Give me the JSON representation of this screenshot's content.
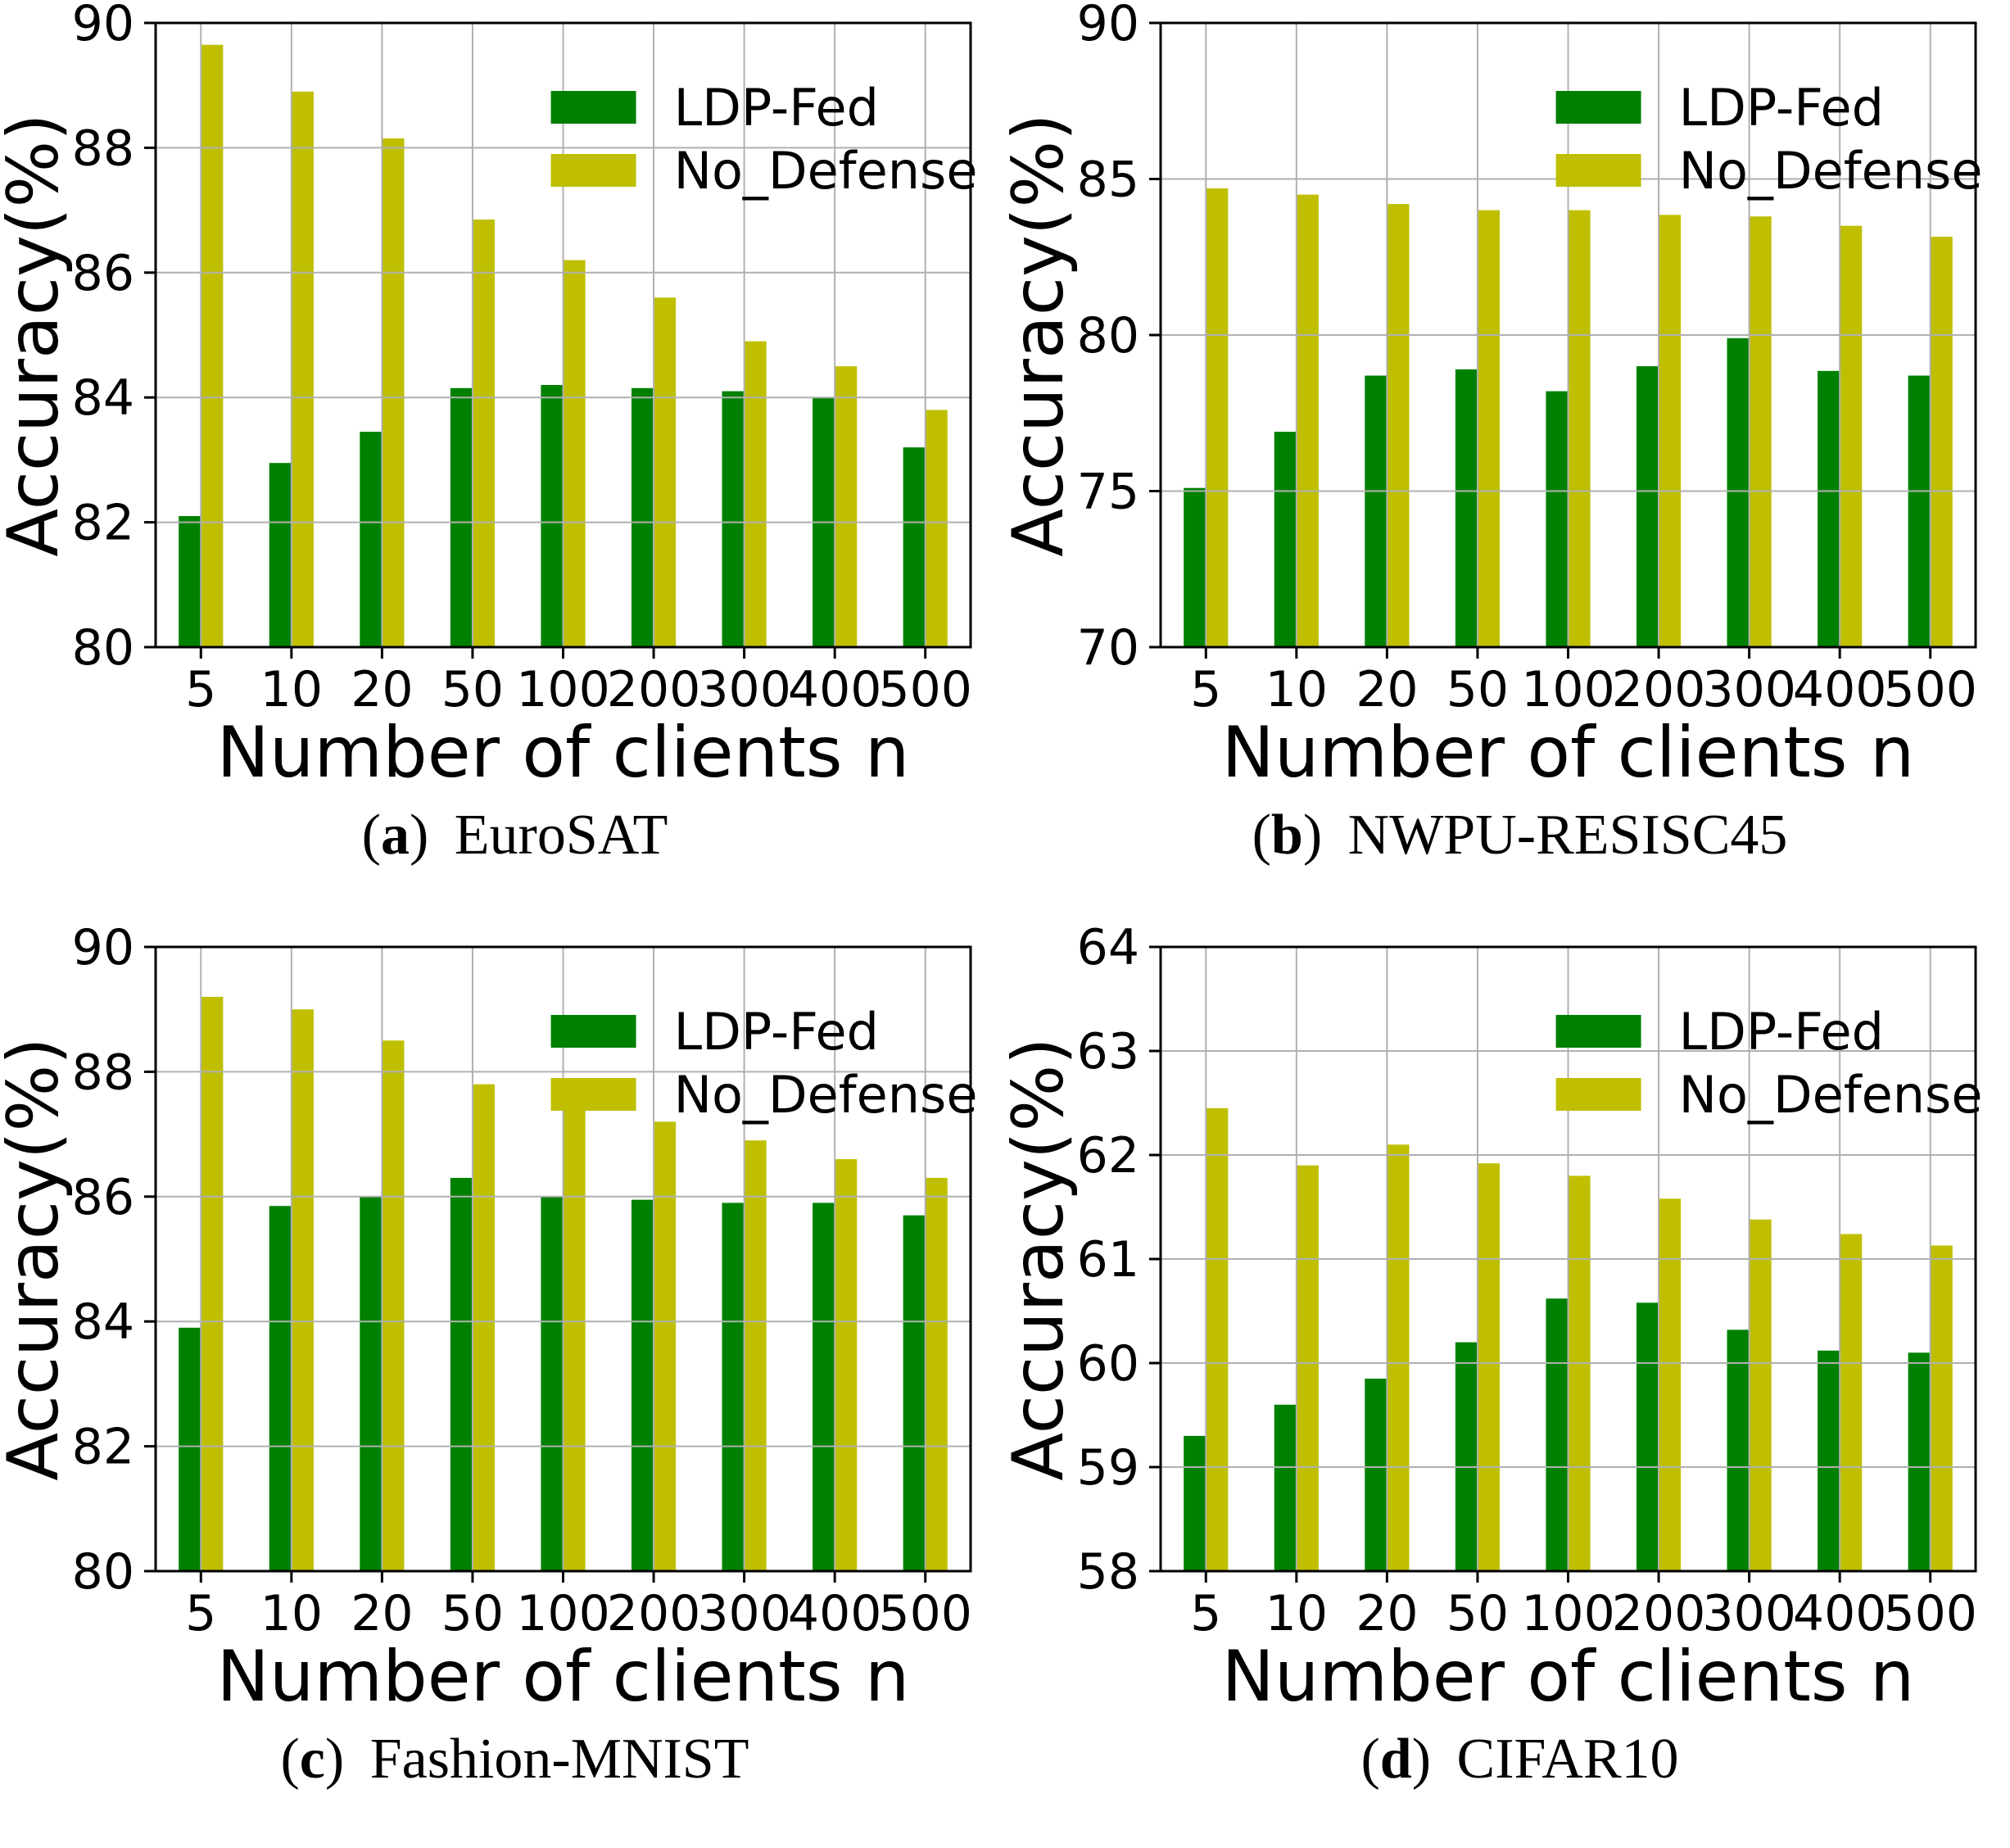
{
  "figure": {
    "description": "2x2 grid of grouped bar charts comparing LDP-Fed vs No_Defense accuracy against number of clients",
    "background": "#ffffff",
    "grid_color": "#b0b0b0",
    "axis_color": "#000000",
    "legend_labels": [
      "LDP-Fed",
      "No_Defense"
    ],
    "series_colors": {
      "ldp_fed": "#008000",
      "no_defense": "#bfbf00"
    }
  },
  "chart_data": [
    {
      "type": "bar",
      "caption_letter": "a",
      "caption_title": "EuroSAT",
      "xlabel": "Number of clients n",
      "ylabel": "Accuracy(%)",
      "ylim": [
        80,
        90
      ],
      "yticks": [
        80,
        82,
        84,
        86,
        88,
        90
      ],
      "categories": [
        "5",
        "10",
        "20",
        "50",
        "100",
        "200",
        "300",
        "400",
        "500"
      ],
      "grid": true,
      "legend_position": "upper right",
      "series": [
        {
          "name": "LDP-Fed",
          "color": "#008000",
          "values": [
            82.1,
            82.95,
            83.45,
            84.15,
            84.2,
            84.15,
            84.1,
            84.0,
            83.2
          ]
        },
        {
          "name": "No_Defense",
          "color": "#bfbf00",
          "values": [
            89.65,
            88.9,
            88.15,
            86.85,
            86.2,
            85.6,
            84.9,
            84.5,
            83.8
          ]
        }
      ]
    },
    {
      "type": "bar",
      "caption_letter": "b",
      "caption_title": "NWPU-RESISC45",
      "xlabel": "Number of clients n",
      "ylabel": "Accuracy(%)",
      "ylim": [
        70,
        90
      ],
      "yticks": [
        70,
        75,
        80,
        85,
        90
      ],
      "categories": [
        "5",
        "10",
        "20",
        "50",
        "100",
        "200",
        "300",
        "400",
        "500"
      ],
      "grid": true,
      "legend_position": "upper right",
      "series": [
        {
          "name": "LDP-Fed",
          "color": "#008000",
          "values": [
            75.1,
            76.9,
            78.7,
            78.9,
            78.2,
            79.0,
            79.9,
            78.85,
            78.7
          ]
        },
        {
          "name": "No_Defense",
          "color": "#bfbf00",
          "values": [
            84.7,
            84.5,
            84.2,
            84.0,
            84.0,
            83.85,
            83.8,
            83.5,
            83.15
          ]
        }
      ]
    },
    {
      "type": "bar",
      "caption_letter": "c",
      "caption_title": "Fashion-MNIST",
      "xlabel": "Number of clients n",
      "ylabel": "Accuracy(%)",
      "ylim": [
        80,
        90
      ],
      "yticks": [
        80,
        82,
        84,
        86,
        88,
        90
      ],
      "categories": [
        "5",
        "10",
        "20",
        "50",
        "100",
        "200",
        "300",
        "400",
        "500"
      ],
      "grid": true,
      "legend_position": "upper right",
      "series": [
        {
          "name": "LDP-Fed",
          "color": "#008000",
          "values": [
            83.9,
            85.85,
            86.0,
            86.3,
            86.0,
            85.95,
            85.9,
            85.9,
            85.7
          ]
        },
        {
          "name": "No_Defense",
          "color": "#bfbf00",
          "values": [
            89.2,
            89.0,
            88.5,
            87.8,
            87.5,
            87.2,
            86.9,
            86.6,
            86.3
          ]
        }
      ]
    },
    {
      "type": "bar",
      "caption_letter": "d",
      "caption_title": "CIFAR10",
      "xlabel": "Number of clients n",
      "ylabel": "Accuracy(%)",
      "ylim": [
        58,
        64
      ],
      "yticks": [
        58,
        59,
        60,
        61,
        62,
        63,
        64
      ],
      "categories": [
        "5",
        "10",
        "20",
        "50",
        "100",
        "200",
        "300",
        "400",
        "500"
      ],
      "grid": true,
      "legend_position": "upper right",
      "series": [
        {
          "name": "LDP-Fed",
          "color": "#008000",
          "values": [
            59.3,
            59.6,
            59.85,
            60.2,
            60.62,
            60.58,
            60.32,
            60.12,
            60.1
          ]
        },
        {
          "name": "No_Defense",
          "color": "#bfbf00",
          "values": [
            62.45,
            61.9,
            62.1,
            61.92,
            61.8,
            61.58,
            61.38,
            61.24,
            61.13
          ]
        }
      ]
    }
  ]
}
